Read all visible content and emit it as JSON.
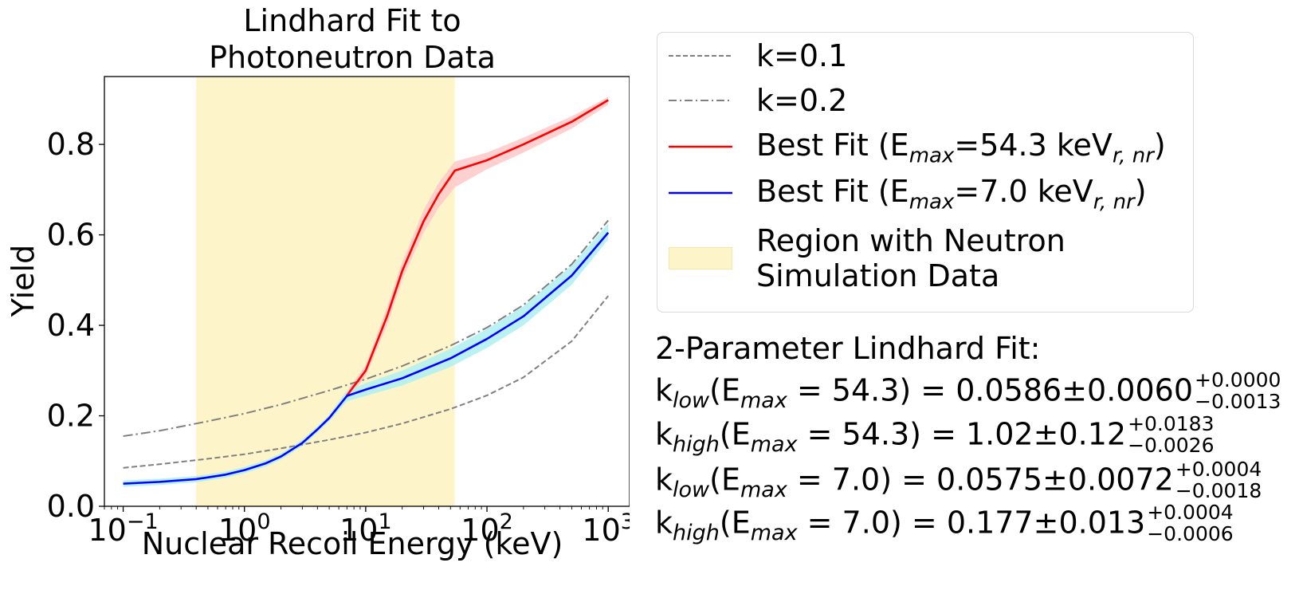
{
  "chart_data": {
    "type": "line",
    "title": "Lindhard Fit to\nPhotoneutron Data",
    "title_lines": [
      "Lindhard Fit to",
      "Photoneutron Data"
    ],
    "xlabel": "Nuclear Recoil Energy (keV)",
    "ylabel": "Yield",
    "x_scale": "log",
    "xlim": [
      0.07,
      1500
    ],
    "ylim": [
      0,
      0.95
    ],
    "x_ticks": [
      0.1,
      1,
      10,
      100,
      1000
    ],
    "x_tick_labels": [
      {
        "base": "10",
        "exp": "−1"
      },
      {
        "base": "10",
        "exp": "0"
      },
      {
        "base": "10",
        "exp": "1"
      },
      {
        "base": "10",
        "exp": "2"
      },
      {
        "base": "10",
        "exp": "3"
      }
    ],
    "y_ticks": [
      0.0,
      0.2,
      0.4,
      0.6,
      0.8
    ],
    "y_tick_labels": [
      "0.0",
      "0.2",
      "0.4",
      "0.6",
      "0.8"
    ],
    "grid": false,
    "shaded_region": {
      "x": [
        0.4,
        54.3
      ],
      "color": "#fdf5c9",
      "label": "Region with Neutron Simulation Data"
    },
    "series": [
      {
        "name": "k=0.1",
        "style": "dashed",
        "color": "#808080",
        "x": [
          0.1,
          0.2,
          0.5,
          1,
          2,
          5,
          10,
          20,
          50,
          100,
          200,
          500,
          1000
        ],
        "y": [
          0.085,
          0.093,
          0.105,
          0.115,
          0.128,
          0.147,
          0.163,
          0.183,
          0.215,
          0.245,
          0.285,
          0.365,
          0.465
        ]
      },
      {
        "name": "k=0.2",
        "style": "dashdot",
        "color": "#808080",
        "x": [
          0.1,
          0.2,
          0.5,
          1,
          2,
          5,
          10,
          20,
          50,
          100,
          200,
          500,
          1000
        ],
        "y": [
          0.155,
          0.167,
          0.188,
          0.205,
          0.225,
          0.256,
          0.281,
          0.31,
          0.355,
          0.395,
          0.445,
          0.535,
          0.632
        ]
      },
      {
        "name": "Best Fit (Emax=54.3 keVr,nr)",
        "style": "solid",
        "color": "#ff0000",
        "x": [
          7,
          10,
          15,
          20,
          30,
          40,
          54.3,
          100,
          200,
          500,
          1000
        ],
        "y": [
          0.245,
          0.3,
          0.42,
          0.52,
          0.63,
          0.69,
          0.742,
          0.765,
          0.8,
          0.85,
          0.898
        ],
        "band": {
          "color": "#ffc8c8",
          "lower": [
            0.235,
            0.288,
            0.4,
            0.5,
            0.605,
            0.66,
            0.705,
            0.745,
            0.782,
            0.835,
            0.888
          ],
          "upper": [
            0.255,
            0.312,
            0.44,
            0.54,
            0.655,
            0.715,
            0.762,
            0.782,
            0.815,
            0.862,
            0.905
          ]
        }
      },
      {
        "name": "Best Fit (Emax=7.0 keVr,nr)",
        "style": "solid",
        "color": "#0000ff",
        "x": [
          0.1,
          0.2,
          0.4,
          0.7,
          1,
          1.5,
          2,
          3,
          4,
          5,
          7,
          10,
          20,
          50,
          100,
          200,
          500,
          1000
        ],
        "y": [
          0.05,
          0.054,
          0.06,
          0.07,
          0.08,
          0.095,
          0.11,
          0.14,
          0.17,
          0.195,
          0.244,
          0.258,
          0.283,
          0.327,
          0.37,
          0.42,
          0.51,
          0.605
        ],
        "band": {
          "color": "#aef0f2",
          "lower": [
            0.043,
            0.047,
            0.053,
            0.063,
            0.073,
            0.088,
            0.103,
            0.133,
            0.163,
            0.188,
            0.232,
            0.244,
            0.267,
            0.308,
            0.35,
            0.4,
            0.49,
            0.59
          ],
          "upper": [
            0.057,
            0.061,
            0.067,
            0.077,
            0.087,
            0.102,
            0.117,
            0.147,
            0.177,
            0.202,
            0.256,
            0.272,
            0.3,
            0.348,
            0.392,
            0.442,
            0.532,
            0.625
          ]
        }
      }
    ]
  },
  "legend": {
    "items": [
      {
        "label": "k=0.1"
      },
      {
        "label": "k=0.2"
      },
      {
        "pre": "Best Fit (E",
        "sub": "max",
        "mid": "=54.3 keV",
        "sub2": "r, nr",
        "post": ")"
      },
      {
        "pre": "Best Fit (E",
        "sub": "max",
        "mid": "=7.0 keV",
        "sub2": "r, nr",
        "post": ")"
      },
      {
        "line1": "Region with Neutron",
        "line2": "Simulation Data"
      }
    ]
  },
  "fit_results": {
    "heading": "2-Parameter Lindhard Fit:",
    "lines": [
      {
        "k": "k",
        "ksub": "low",
        "open": "(E",
        "esub": "max",
        "eq": " = 54.3) = 0.0586±0.0060",
        "up": "+0.0000",
        "down": "−0.0013"
      },
      {
        "k": "k",
        "ksub": "high",
        "open": "(E",
        "esub": "max",
        "eq": " = 54.3) = 1.02±0.12",
        "up": "+0.0183",
        "down": "−0.0026"
      },
      {
        "k": "k",
        "ksub": "low",
        "open": "(E",
        "esub": "max",
        "eq": " = 7.0) = 0.0575±0.0072",
        "up": "+0.0004",
        "down": "−0.0018"
      },
      {
        "k": "k",
        "ksub": "high",
        "open": "(E",
        "esub": "max",
        "eq": " = 7.0) = 0.177±0.013",
        "up": "+0.0004",
        "down": "−0.0006"
      }
    ]
  }
}
